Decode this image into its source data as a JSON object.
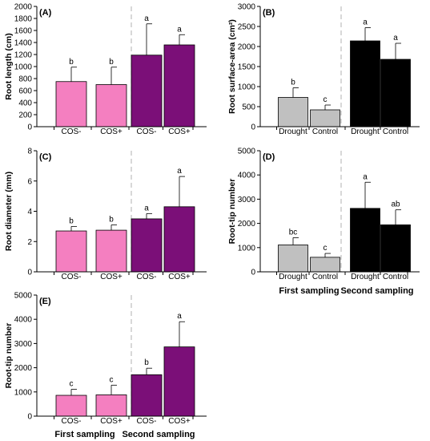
{
  "colors": {
    "pink": "#f47fc0",
    "purple": "#7b0f78",
    "gray": "#c0c0c0",
    "black": "#000000",
    "divider": "#b0b0b0"
  },
  "chart_data": [
    {
      "panel": "(A)",
      "type": "bar",
      "categories": [
        "COS-",
        "COS+",
        "COS-",
        "COS+"
      ],
      "values": [
        750,
        700,
        1190,
        1360
      ],
      "errors": [
        240,
        290,
        520,
        170
      ],
      "letters": [
        "b",
        "b",
        "a",
        "a"
      ],
      "colors": [
        "pink",
        "pink",
        "purple",
        "purple"
      ],
      "ylabel": "Root length (cm)",
      "ylim": [
        0,
        2000
      ],
      "yticks": [
        0,
        200,
        400,
        600,
        800,
        1000,
        1200,
        1400,
        1600,
        1800,
        2000
      ]
    },
    {
      "panel": "(B)",
      "type": "bar",
      "categories": [
        "Drought",
        "Control",
        "Drought",
        "Control"
      ],
      "values": [
        730,
        420,
        2140,
        1680
      ],
      "errors": [
        240,
        120,
        330,
        400
      ],
      "letters": [
        "b",
        "c",
        "a",
        "a"
      ],
      "colors": [
        "gray",
        "gray",
        "black",
        "black"
      ],
      "ylabel": "Root surface-area (cm²)",
      "ylim": [
        0,
        3000
      ],
      "yticks": [
        0,
        500,
        1000,
        1500,
        2000,
        2500,
        3000
      ]
    },
    {
      "panel": "(C)",
      "type": "bar",
      "categories": [
        "COS-",
        "COS+",
        "COS-",
        "COS+"
      ],
      "values": [
        2.7,
        2.75,
        3.5,
        4.3
      ],
      "errors": [
        0.3,
        0.35,
        0.35,
        2.0
      ],
      "letters": [
        "b",
        "b",
        "a",
        "a"
      ],
      "colors": [
        "pink",
        "pink",
        "purple",
        "purple"
      ],
      "ylabel": "Root diameter (mm)",
      "ylim": [
        0,
        8
      ],
      "yticks": [
        0,
        2,
        4,
        6,
        8
      ]
    },
    {
      "panel": "(D)",
      "type": "bar",
      "categories": [
        "Drought",
        "Control",
        "Drought",
        "Control"
      ],
      "values": [
        1110,
        600,
        2620,
        1940
      ],
      "errors": [
        300,
        160,
        1080,
        620
      ],
      "letters": [
        "bc",
        "c",
        "a",
        "ab"
      ],
      "colors": [
        "gray",
        "gray",
        "black",
        "black"
      ],
      "ylabel": "Root-tip number",
      "ylim": [
        0,
        5000
      ],
      "yticks": [
        0,
        1000,
        2000,
        3000,
        4000,
        5000
      ],
      "groups": [
        "First sampling",
        "Second sampling"
      ]
    },
    {
      "panel": "(E)",
      "type": "bar",
      "categories": [
        "COS-",
        "COS+",
        "COS-",
        "COS+"
      ],
      "values": [
        860,
        880,
        1710,
        2860
      ],
      "errors": [
        250,
        400,
        270,
        1040
      ],
      "letters": [
        "c",
        "c",
        "b",
        "a"
      ],
      "colors": [
        "pink",
        "pink",
        "purple",
        "purple"
      ],
      "ylabel": "Root-tip number",
      "ylim": [
        0,
        5000
      ],
      "yticks": [
        0,
        1000,
        2000,
        3000,
        4000,
        5000
      ],
      "groups": [
        "First sampling",
        "Second sampling"
      ]
    }
  ]
}
